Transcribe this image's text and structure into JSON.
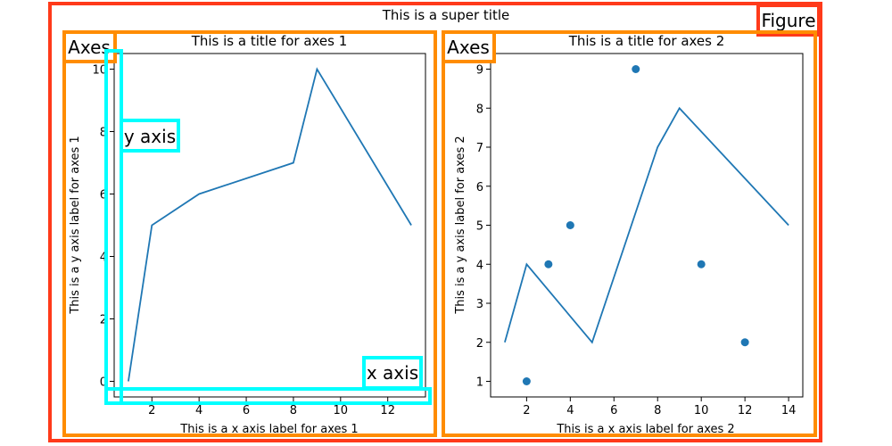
{
  "figure": {
    "super_title": "This is a super title",
    "annotations": {
      "figure": "Figure",
      "axes": "Axes",
      "y_axis": "y axis",
      "x_axis": "x axis"
    },
    "colors": {
      "figure_box": "#ff3a1a",
      "axes_box": "#ff8c00",
      "axis_box": "#00ffff",
      "series": "#1f77b4"
    }
  },
  "chart_data": [
    {
      "type": "line",
      "title": "This is a title for axes 1",
      "xlabel": "This is a x axis label for axes 1",
      "ylabel": "This is a y axis label for axes 1",
      "xlim": [
        0.4,
        13.6
      ],
      "ylim": [
        -0.5,
        10.5
      ],
      "xticks": [
        2,
        4,
        6,
        8,
        10,
        12
      ],
      "yticks": [
        0,
        2,
        4,
        6,
        8,
        10
      ],
      "series": [
        {
          "type": "line",
          "x": [
            1,
            2,
            4,
            8,
            9,
            13
          ],
          "y": [
            0,
            5,
            6,
            7,
            10,
            5
          ]
        }
      ]
    },
    {
      "type": "line",
      "title": "This is a title for axes 2",
      "xlabel": "This is a x axis label for axes 2",
      "ylabel": "This is a y axis label for axes 2",
      "xlim": [
        0.35,
        14.65
      ],
      "ylim": [
        0.6,
        9.4
      ],
      "xticks": [
        2,
        4,
        6,
        8,
        10,
        12,
        14
      ],
      "yticks": [
        1,
        2,
        3,
        4,
        5,
        6,
        7,
        8,
        9
      ],
      "series": [
        {
          "type": "line",
          "x": [
            1,
            2,
            5,
            8,
            9,
            14
          ],
          "y": [
            2,
            4,
            2,
            7,
            8,
            5
          ]
        },
        {
          "type": "scatter",
          "x": [
            2,
            3,
            4,
            7,
            10,
            12
          ],
          "y": [
            1,
            4,
            5,
            9,
            4,
            2
          ]
        }
      ]
    }
  ]
}
